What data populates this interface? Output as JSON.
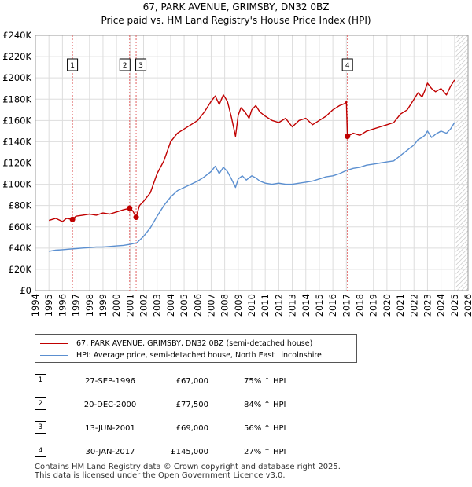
{
  "title_line1": "67, PARK AVENUE, GRIMSBY, DN32 0BZ",
  "title_line2": "Price paid vs. HM Land Registry's House Price Index (HPI)",
  "colors": {
    "price_paid": "#c00000",
    "hpi": "#5b8fd0",
    "background": "#ffffff",
    "grid": "#dddddd",
    "marker_line": "#e06060",
    "future_hatch": "#cccccc"
  },
  "legend": {
    "price_paid_label": "67, PARK AVENUE, GRIMSBY, DN32 0BZ (semi-detached house)",
    "hpi_label": "HPI: Average price, semi-detached house, North East Lincolnshire"
  },
  "transactions": [
    {
      "num": "1",
      "date": "27-SEP-1996",
      "price": "£67,000",
      "hpi_change": "75% ↑ HPI"
    },
    {
      "num": "2",
      "date": "20-DEC-2000",
      "price": "£77,500",
      "hpi_change": "84% ↑ HPI"
    },
    {
      "num": "3",
      "date": "13-JUN-2001",
      "price": "£69,000",
      "hpi_change": "56% ↑ HPI"
    },
    {
      "num": "4",
      "date": "30-JAN-2017",
      "price": "£145,000",
      "hpi_change": "27% ↑ HPI"
    }
  ],
  "footer_line1": "Contains HM Land Registry data © Crown copyright and database right 2025.",
  "footer_line2": "This data is licensed under the Open Government Licence v3.0.",
  "chart_data": {
    "type": "line",
    "title": "Price paid vs. HM Land Registry's House Price Index (HPI)",
    "xlabel": "",
    "ylabel": "",
    "xlim": [
      1994,
      2026
    ],
    "ylim": [
      0,
      240000
    ],
    "x_ticks": [
      1994,
      1995,
      1996,
      1997,
      1998,
      1999,
      2000,
      2001,
      2002,
      2003,
      2004,
      2005,
      2006,
      2007,
      2008,
      2009,
      2010,
      2011,
      2012,
      2013,
      2014,
      2015,
      2016,
      2017,
      2018,
      2019,
      2020,
      2021,
      2022,
      2023,
      2024,
      2025,
      2026
    ],
    "y_ticks": [
      0,
      20000,
      40000,
      60000,
      80000,
      100000,
      120000,
      140000,
      160000,
      180000,
      200000,
      220000,
      240000
    ],
    "y_tick_labels": [
      "£0",
      "£20K",
      "£40K",
      "£60K",
      "£80K",
      "£100K",
      "£120K",
      "£140K",
      "£160K",
      "£180K",
      "£200K",
      "£220K",
      "£240K"
    ],
    "grid": true,
    "data_end": 2025.1,
    "sale_markers": [
      {
        "label": "1",
        "x": 1996.74,
        "y": 67000
      },
      {
        "label": "2",
        "x": 2000.97,
        "y": 77500
      },
      {
        "label": "3",
        "x": 2001.45,
        "y": 69000
      },
      {
        "label": "4",
        "x": 2017.08,
        "y": 145000
      }
    ],
    "series": [
      {
        "name": "67, PARK AVENUE, GRIMSBY, DN32 0BZ (semi-detached house)",
        "x": [
          1995.0,
          1995.5,
          1996.0,
          1996.3,
          1996.74,
          1997.0,
          1997.5,
          1998.0,
          1998.5,
          1999.0,
          1999.5,
          2000.0,
          2000.5,
          2000.97,
          2001.2,
          2001.45,
          2001.7,
          2002.0,
          2002.5,
          2003.0,
          2003.5,
          2004.0,
          2004.5,
          2005.0,
          2005.5,
          2006.0,
          2006.5,
          2007.0,
          2007.3,
          2007.6,
          2007.9,
          2008.2,
          2008.5,
          2008.8,
          2009.0,
          2009.2,
          2009.5,
          2009.8,
          2010.0,
          2010.3,
          2010.6,
          2011.0,
          2011.5,
          2012.0,
          2012.5,
          2013.0,
          2013.5,
          2014.0,
          2014.5,
          2015.0,
          2015.5,
          2016.0,
          2016.5,
          2016.9,
          2017.0,
          2017.08,
          2017.5,
          2018.0,
          2018.5,
          2019.0,
          2019.5,
          2020.0,
          2020.5,
          2021.0,
          2021.5,
          2022.0,
          2022.3,
          2022.6,
          2022.8,
          2023.0,
          2023.3,
          2023.6,
          2024.0,
          2024.4,
          2024.7,
          2025.0
        ],
        "values": [
          66000,
          68000,
          65000,
          68000,
          67000,
          70000,
          71000,
          72000,
          71000,
          73000,
          72000,
          74000,
          76000,
          77500,
          75000,
          69000,
          80000,
          84000,
          92000,
          110000,
          122000,
          140000,
          148000,
          152000,
          156000,
          160000,
          168000,
          178000,
          183000,
          175000,
          184000,
          178000,
          163000,
          145000,
          165000,
          172000,
          168000,
          162000,
          170000,
          174000,
          168000,
          164000,
          160000,
          158000,
          162000,
          154000,
          160000,
          162000,
          156000,
          160000,
          164000,
          170000,
          174000,
          176000,
          178000,
          145000,
          148000,
          146000,
          150000,
          152000,
          154000,
          156000,
          158000,
          166000,
          170000,
          180000,
          186000,
          182000,
          188000,
          195000,
          190000,
          187000,
          190000,
          184000,
          192000,
          198000
        ]
      },
      {
        "name": "HPI: Average price, semi-detached house, North East Lincolnshire",
        "x": [
          1995.0,
          1995.5,
          1996.0,
          1996.5,
          1997.0,
          1997.5,
          1998.0,
          1998.5,
          1999.0,
          1999.5,
          2000.0,
          2000.5,
          2001.0,
          2001.5,
          2002.0,
          2002.5,
          2003.0,
          2003.5,
          2004.0,
          2004.5,
          2005.0,
          2005.5,
          2006.0,
          2006.5,
          2007.0,
          2007.3,
          2007.6,
          2007.9,
          2008.2,
          2008.5,
          2008.8,
          2009.0,
          2009.3,
          2009.6,
          2010.0,
          2010.3,
          2010.6,
          2011.0,
          2011.5,
          2012.0,
          2012.5,
          2013.0,
          2013.5,
          2014.0,
          2014.5,
          2015.0,
          2015.5,
          2016.0,
          2016.5,
          2017.0,
          2017.5,
          2018.0,
          2018.5,
          2019.0,
          2019.5,
          2020.0,
          2020.5,
          2021.0,
          2021.5,
          2022.0,
          2022.3,
          2022.6,
          2022.8,
          2023.0,
          2023.3,
          2023.6,
          2024.0,
          2024.4,
          2024.7,
          2025.0
        ],
        "values": [
          37000,
          38000,
          38500,
          39000,
          39500,
          40000,
          40500,
          41000,
          41000,
          41500,
          42000,
          42500,
          43500,
          45000,
          51000,
          59000,
          70000,
          80000,
          88000,
          94000,
          97000,
          100000,
          103000,
          107000,
          112000,
          117000,
          110000,
          116000,
          112000,
          105000,
          97000,
          105000,
          108000,
          104000,
          108000,
          106000,
          103000,
          101000,
          100000,
          101000,
          100000,
          100000,
          101000,
          102000,
          103000,
          105000,
          107000,
          108000,
          110000,
          113000,
          115000,
          116000,
          118000,
          119000,
          120000,
          121000,
          122000,
          127000,
          132000,
          137000,
          142000,
          144000,
          146000,
          150000,
          144000,
          147000,
          150000,
          148000,
          152000,
          158000
        ]
      }
    ]
  }
}
